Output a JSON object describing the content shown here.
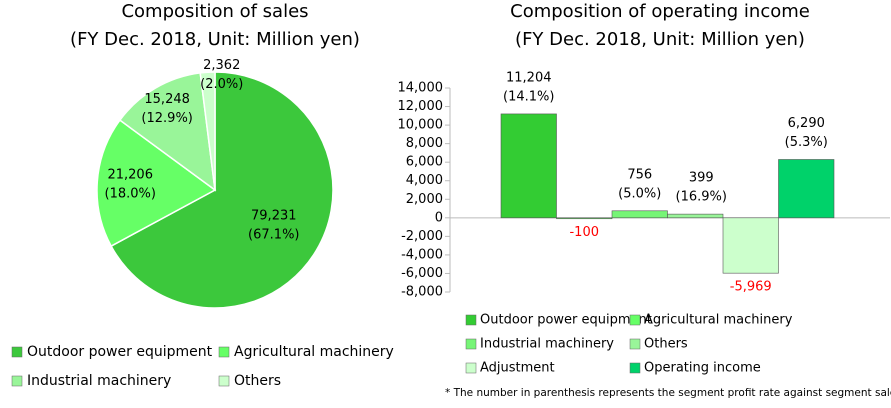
{
  "chart_data": [
    {
      "type": "pie",
      "title": "Composition of sales",
      "subtitle": "(FY Dec. 2018, Unit: Million yen)",
      "categories": [
        "Outdoor power equipment",
        "Agricultural machinery",
        "Industrial machinery",
        "Others"
      ],
      "values": [
        79231,
        21206,
        15248,
        2362
      ],
      "value_labels": [
        "79,231",
        "21,206",
        "15,248",
        "2,362"
      ],
      "percent_labels": [
        "(67.1%)",
        "(18.0%)",
        "(12.9%)",
        "(2.0%)"
      ],
      "colors": [
        "#3cc83c",
        "#66ff66",
        "#99f599",
        "#ccffcc"
      ]
    },
    {
      "type": "bar",
      "title": "Composition of operating income",
      "subtitle": "(FY Dec. 2018, Unit: Million yen)",
      "categories": [
        null,
        null,
        null,
        null,
        null,
        null
      ],
      "series": [
        {
          "name": "Outdoor power equipment",
          "color": "#33cc33",
          "values": [
            11204,
            null,
            null,
            null,
            null,
            null
          ],
          "value_labels": [
            "11,204",
            null,
            null,
            null,
            null,
            null
          ],
          "percent_labels": [
            "(14.1%)",
            null,
            null,
            null,
            null,
            null
          ]
        },
        {
          "name": "Agricultural machinery",
          "color": "#66ff66",
          "values": [
            null,
            -100,
            null,
            null,
            null,
            null
          ],
          "value_labels": [
            null,
            "-100",
            null,
            null,
            null,
            null
          ],
          "percent_labels": [
            null,
            null,
            null,
            null,
            null,
            null
          ]
        },
        {
          "name": "Industrial machinery",
          "color": "#77f577",
          "values": [
            null,
            null,
            756,
            null,
            null,
            null
          ],
          "value_labels": [
            null,
            null,
            "756",
            null,
            null,
            null
          ],
          "percent_labels": [
            null,
            null,
            "(5.0%)",
            null,
            null,
            null
          ]
        },
        {
          "name": "Others",
          "color": "#99f599",
          "values": [
            null,
            null,
            null,
            399,
            null,
            null
          ],
          "value_labels": [
            null,
            null,
            null,
            "399",
            null,
            null
          ],
          "percent_labels": [
            null,
            null,
            null,
            "(16.9%)",
            null,
            null
          ]
        },
        {
          "name": "Adjustment",
          "color": "#ccffcc",
          "values": [
            null,
            null,
            null,
            null,
            -5969,
            null
          ],
          "value_labels": [
            null,
            null,
            null,
            null,
            "-5,969",
            null
          ],
          "percent_labels": [
            null,
            null,
            null,
            null,
            null,
            null
          ]
        },
        {
          "name": "Operating income",
          "color": "#00d26a",
          "values": [
            null,
            null,
            null,
            null,
            null,
            6290
          ],
          "value_labels": [
            null,
            null,
            null,
            null,
            null,
            "6,290"
          ],
          "percent_labels": [
            null,
            null,
            null,
            null,
            null,
            "(5.3%)"
          ]
        }
      ],
      "negative_label_color": "#ff0000",
      "ylim": [
        -8000,
        14000
      ],
      "yticks": [
        {
          "value": 14000,
          "label": "14,000"
        },
        {
          "value": 12000,
          "label": "12,000"
        },
        {
          "value": 10000,
          "label": "10,000"
        },
        {
          "value": 8000,
          "label": "8,000"
        },
        {
          "value": 6000,
          "label": "6,000"
        },
        {
          "value": 4000,
          "label": "4,000"
        },
        {
          "value": 2000,
          "label": "2,000"
        },
        0,
        {
          "value": -2000,
          "label": "-2,000"
        },
        {
          "value": -4000,
          "label": "-4,000"
        },
        {
          "value": -6000,
          "label": "-6,000"
        },
        {
          "value": -8000,
          "label": "-8,000"
        }
      ],
      "note": "* The number in parenthesis represents the segment profit rate against segment sales"
    }
  ]
}
